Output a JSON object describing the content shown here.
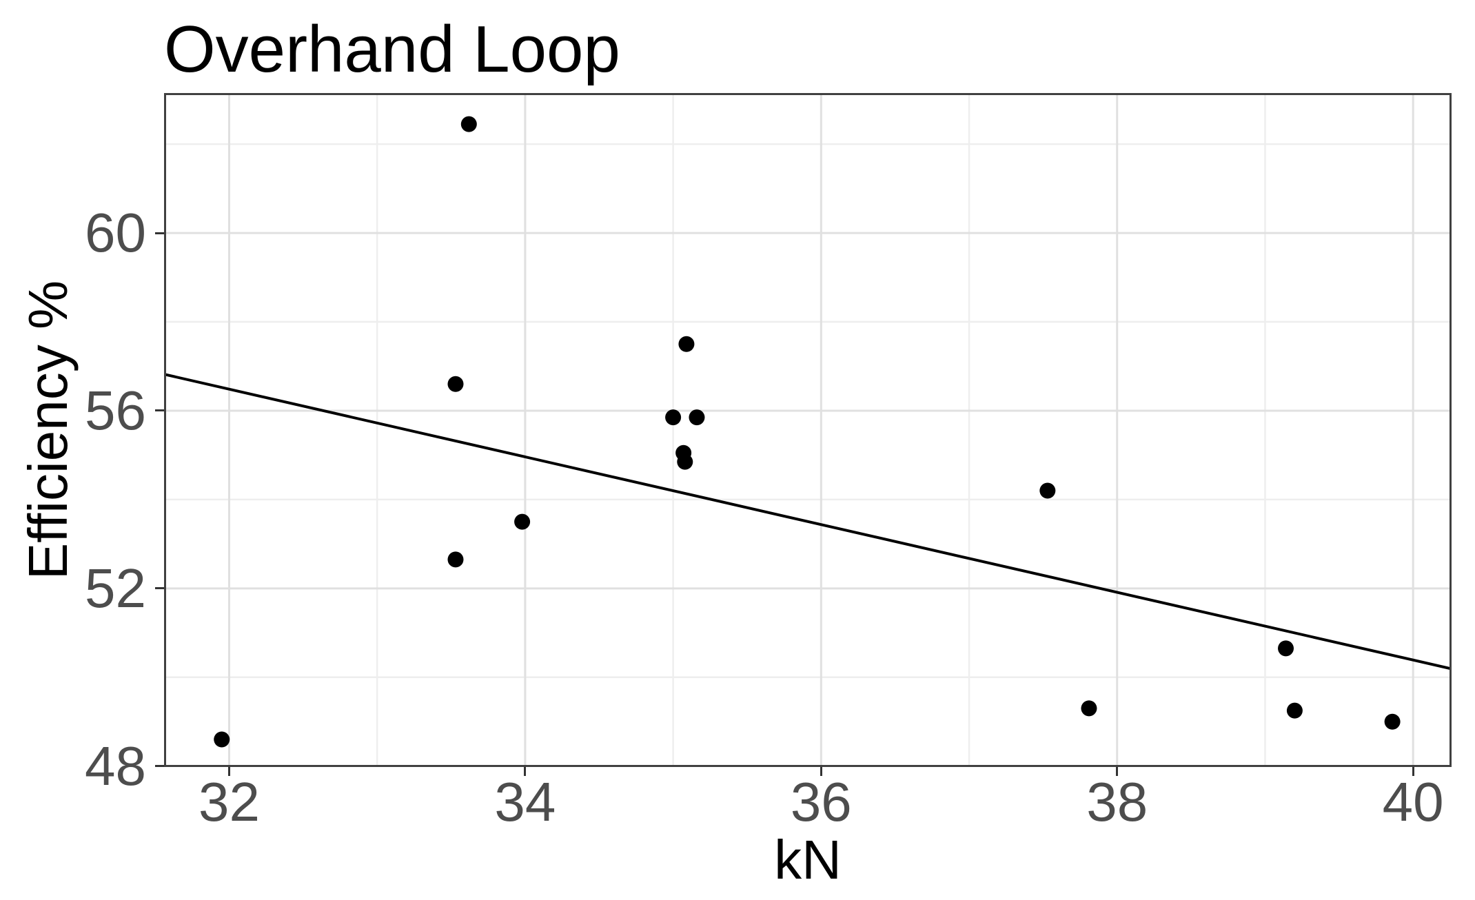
{
  "title": "Overhand Loop",
  "chart_data": {
    "type": "scatter",
    "title": "Overhand Loop",
    "xlabel": "kN",
    "ylabel": "Efficiency %",
    "xlim": [
      31.56,
      40.26
    ],
    "ylim": [
      47.98,
      63.15
    ],
    "x_ticks": [
      32,
      34,
      36,
      38,
      40
    ],
    "y_ticks": [
      48,
      52,
      56,
      60
    ],
    "x_minor_gridlines": [
      33,
      35,
      37,
      39
    ],
    "y_minor_gridlines": [
      50,
      54,
      58,
      62
    ],
    "grid": "on",
    "legend": "none",
    "points": [
      [
        31.95,
        48.6
      ],
      [
        33.53,
        56.6
      ],
      [
        33.53,
        52.65
      ],
      [
        33.62,
        62.45
      ],
      [
        33.98,
        53.5
      ],
      [
        35.0,
        55.85
      ],
      [
        35.07,
        55.05
      ],
      [
        35.08,
        54.85
      ],
      [
        35.09,
        57.5
      ],
      [
        35.16,
        55.85
      ],
      [
        37.53,
        54.2
      ],
      [
        37.81,
        49.3
      ],
      [
        39.14,
        50.65
      ],
      [
        39.2,
        49.25
      ],
      [
        39.86,
        49.0
      ]
    ],
    "point_radius_px": 11.5,
    "trend_line": {
      "x1": 31.56,
      "y1": 56.82,
      "x2": 40.26,
      "y2": 50.19,
      "slope": -0.76,
      "intercept": 80.9
    },
    "colors": {
      "point": "#000000",
      "trend": "#000000",
      "grid_major": "#e0e0e0",
      "grid_minor": "#eeeeee",
      "panel_border": "#404040",
      "axis_text": "#4d4d4d",
      "title_text": "#000000",
      "tick_mark": "#333333",
      "background": "#ffffff"
    }
  }
}
